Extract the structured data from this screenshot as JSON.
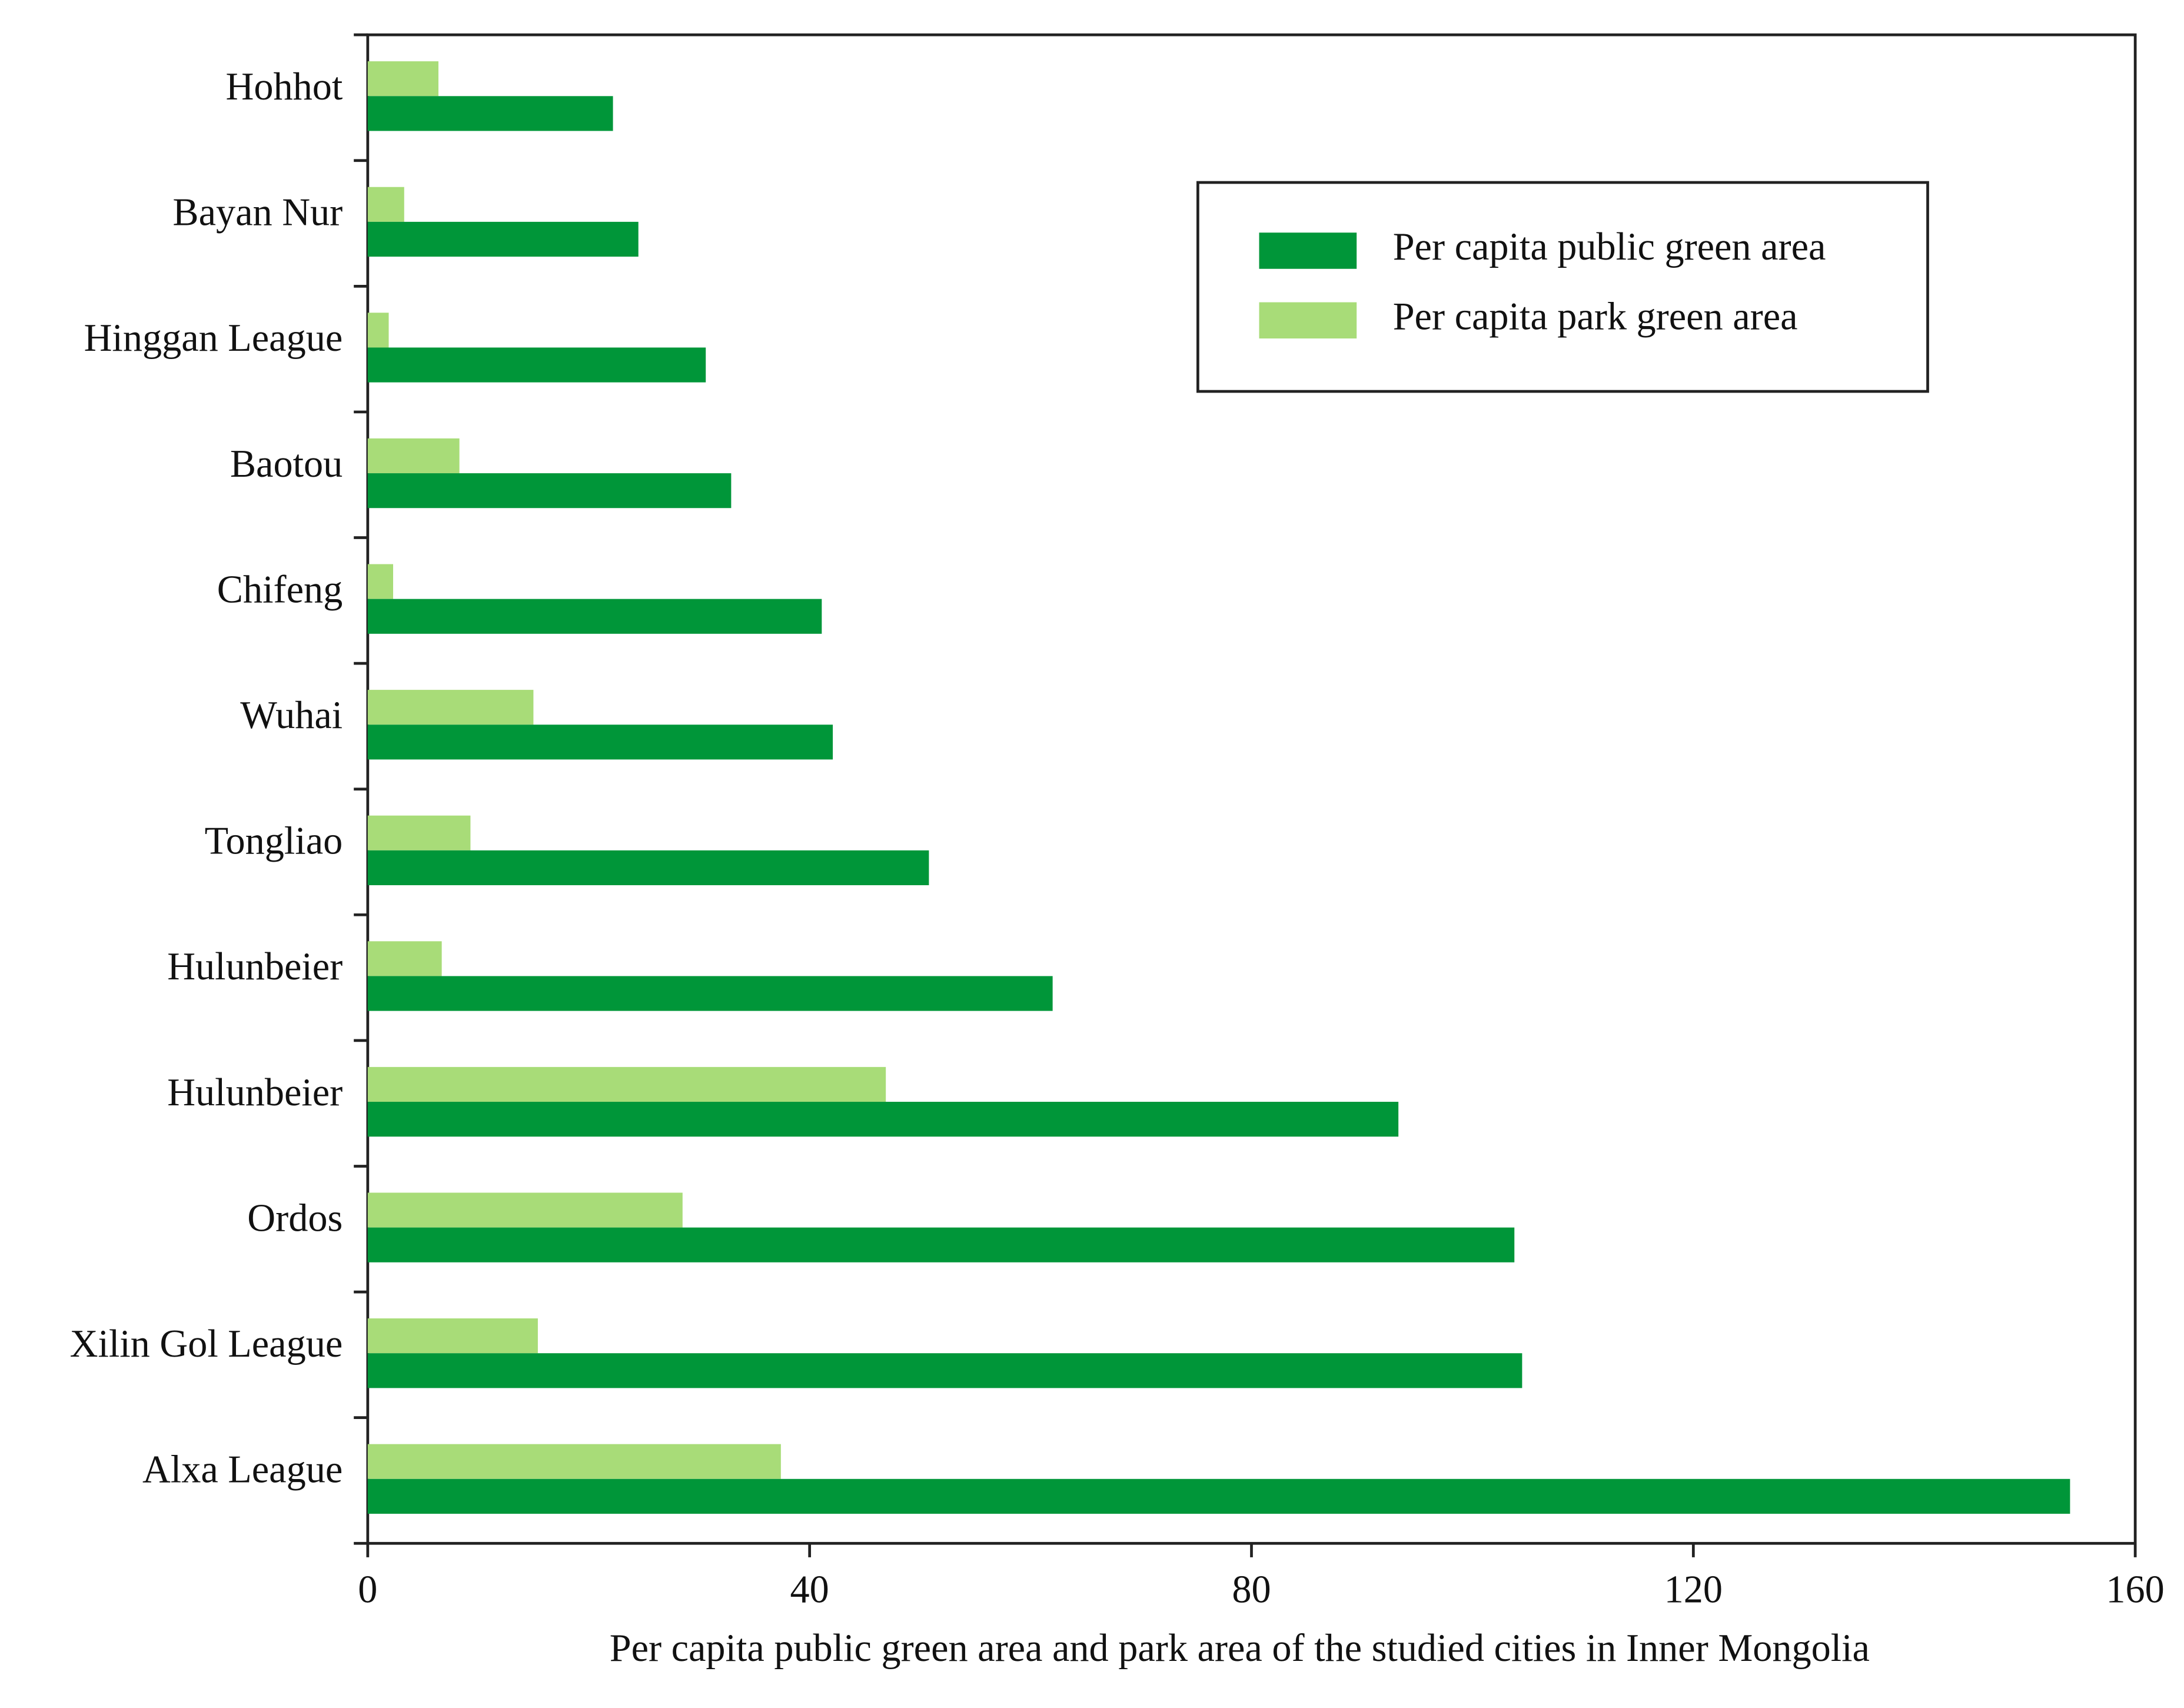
{
  "chart_data": {
    "type": "hbar",
    "x_label": "Per capita public green area and park area of the studied cities in Inner Mongolia",
    "categories": [
      "Hohhot",
      "Bayan Nur",
      "Hinggan League",
      "Baotou",
      "Chifeng",
      "Wuhai",
      "Tongliao",
      "Hulunbeier",
      "Hulunbeier",
      "Ordos",
      "Xilin Gol League",
      "Alxa League"
    ],
    "series": [
      {
        "name": "Per capita public green area",
        "color": "#009639",
        "values": [
          22.2,
          24.5,
          30.6,
          32.9,
          41.1,
          42.1,
          50.8,
          62.0,
          93.3,
          103.8,
          104.5,
          154.1
        ]
      },
      {
        "name": "Per capita park green area",
        "color": "#a8dc78",
        "values": [
          6.4,
          3.3,
          1.9,
          8.3,
          2.3,
          15.0,
          9.3,
          6.7,
          46.9,
          28.5,
          15.4,
          37.4
        ]
      }
    ],
    "xlim": [
      0,
      160
    ],
    "xticks": [
      0,
      40,
      80,
      120,
      160
    ],
    "legend": "upper right"
  }
}
